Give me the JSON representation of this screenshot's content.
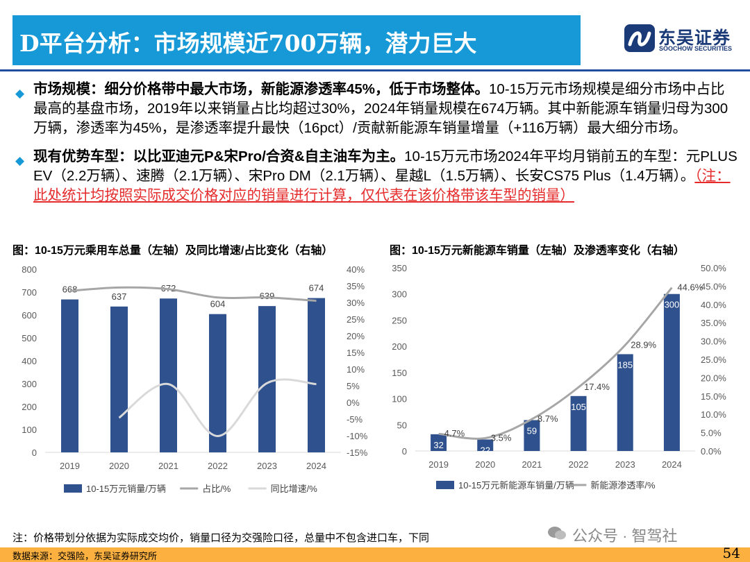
{
  "header": {
    "title": "D平台分析：市场规模近700万辆，潜力巨大",
    "logo_cn": "东吴证券",
    "logo_en": "SOOCHOW SECURITIES"
  },
  "bullets": [
    {
      "bold": "市场规模：细分价格带中最大市场，新能源渗透率45%，低于市场整体。",
      "text": "10-15万元市场规模是细分市场中占比最高的基盘市场，2019年以来销量占比均超过30%，2024年销量规模在674万辆。其中新能源车销量归母为300万辆，渗透率为45%，是渗透率提升最快（16pct）/贡献新能源车销量增量（+116万辆）最大细分市场。"
    },
    {
      "bold": "现有优势车型：以比亚迪元P&宋Pro/合资&自主油车为主。",
      "text": "10-15万元市场2024年平均月销前五的车型：元PLUS EV（2.2万辆）、速腾（2.1万辆）、宋Pro DM（2.1万辆）、星越L（1.5万辆）、长安CS75 Plus（1.4万辆）。",
      "note": "（注：此处统计均按照实际成交价格对应的销量进行计算，仅代表在该价格带该车型的销量）"
    }
  ],
  "chart_data": [
    {
      "type": "bar",
      "title": "图：10-15万元乘用车总量（左轴）及同比增速/占比变化（右轴）",
      "categories": [
        "2019",
        "2020",
        "2021",
        "2022",
        "2023",
        "2024"
      ],
      "series": [
        {
          "name": "10-15万元销量/万辆",
          "type": "bar",
          "axis": "left",
          "values": [
            668,
            637,
            672,
            604,
            639,
            674
          ],
          "color": "#2f528f"
        },
        {
          "name": "占比/%",
          "type": "line",
          "axis": "right",
          "values": [
            33.5,
            34.5,
            34,
            31.5,
            31.5,
            30.5
          ],
          "color": "#a6a6a6"
        },
        {
          "name": "同比增速/%",
          "type": "line",
          "axis": "right",
          "values": [
            null,
            -4.6,
            5.5,
            -10.1,
            5.8,
            5.5
          ],
          "color": "#d9d9d9"
        }
      ],
      "y_left": {
        "min": 0,
        "max": 800,
        "ticks": [
          "0",
          "100",
          "200",
          "300",
          "400",
          "500",
          "600",
          "700",
          "800"
        ]
      },
      "y_right": {
        "min": -15,
        "max": 40,
        "ticks": [
          "-15%",
          "-10%",
          "-5%",
          "0%",
          "5%",
          "10%",
          "15%",
          "20%",
          "25%",
          "30%",
          "35%",
          "40%"
        ]
      },
      "grid": false,
      "legend": "bottom"
    },
    {
      "type": "bar",
      "title": "图：10-15万元新能源车销量（左轴）及渗透率变化（右轴）",
      "categories": [
        "2019",
        "2020",
        "2021",
        "2022",
        "2023",
        "2024"
      ],
      "series": [
        {
          "name": "10-15万元新能源车销量/万辆",
          "type": "bar",
          "axis": "left",
          "values": [
            32,
            22,
            59,
            105,
            185,
            300
          ],
          "color": "#2f528f"
        },
        {
          "name": "新能源渗透率/%",
          "type": "line",
          "axis": "right",
          "values": [
            4.7,
            3.5,
            8.7,
            17.4,
            28.9,
            44.6
          ],
          "labels": [
            "4.7%",
            "3.5%",
            "8.7%",
            "17.4%",
            "28.9%",
            "44.6%"
          ],
          "color": "#a6a6a6"
        }
      ],
      "y_left": {
        "min": 0,
        "max": 350,
        "ticks": [
          "0",
          "50",
          "100",
          "150",
          "200",
          "250",
          "300",
          "350"
        ]
      },
      "y_right": {
        "min": 0,
        "max": 50,
        "ticks": [
          "0.0%",
          "5.0%",
          "10.0%",
          "15.0%",
          "20.0%",
          "25.0%",
          "30.0%",
          "35.0%",
          "40.0%",
          "45.0%",
          "50.0%"
        ]
      },
      "grid": false,
      "legend": "bottom"
    }
  ],
  "footnote": "注：价格带划分依据为实际成交均价，销量口径为交强险口径，总量中不包含进口车，下同",
  "source": "数据来源：交强险，东吴证券研究所",
  "watermark": "公众号 · 智驾社",
  "page_number": "54",
  "colors": {
    "title_bar": "#1699d6",
    "brand": "#1b3a78",
    "bar": "#2f528f",
    "footer": "#fbb040",
    "note": "#e52b2b"
  }
}
